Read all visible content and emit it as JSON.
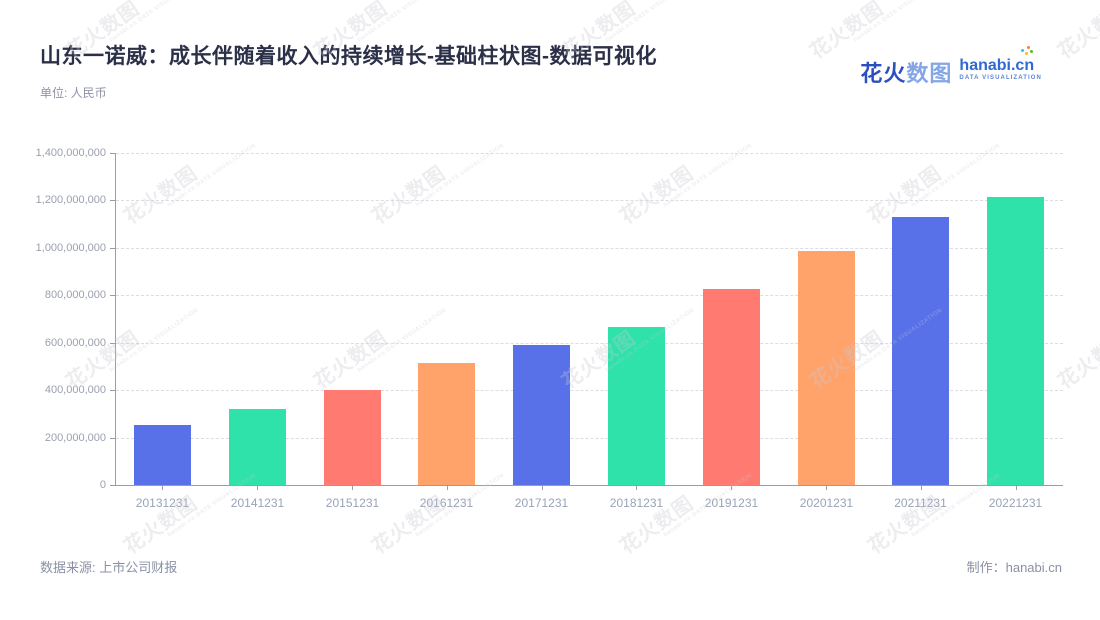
{
  "header": {
    "title": "山东一诺威：成长伴随着收入的持续增长-基础柱状图-数据可视化",
    "subtitle": "单位: 人民币",
    "logo": {
      "brand_cn_1": "花火",
      "brand_cn_2": "数图",
      "brand_en": "hanabi.cn",
      "tagline": "DATA VISUALIZATION"
    }
  },
  "footer": {
    "source": "数据来源: 上市公司财报",
    "credit": "制作：hanabi.cn"
  },
  "watermark": {
    "text": "花火数图",
    "subtext": "hanabi.cn DATA VISUALIZATION"
  },
  "chart_data": {
    "type": "bar",
    "title": "山东一诺威：成长伴随着收入的持续增长-基础柱状图-数据可视化",
    "unit": "人民币",
    "categories": [
      "20131231",
      "20141231",
      "20151231",
      "20161231",
      "20171231",
      "20181231",
      "20191231",
      "20201231",
      "20211231",
      "20221231"
    ],
    "values": [
      255000000,
      320000000,
      400000000,
      515000000,
      590000000,
      665000000,
      825000000,
      985000000,
      1130000000,
      1215000000
    ],
    "ylim": [
      0,
      1400000000
    ],
    "y_tick_interval": 200000000,
    "y_tick_labels": [
      "1,400,000,000",
      "1,200,000,000",
      "1,000,000,000",
      "800,000,000",
      "600,000,000",
      "400,000,000",
      "200,000,000",
      "0"
    ],
    "grid": "dashed-horizontal",
    "legend": "none",
    "bar_palette": [
      "#5871E8",
      "#2FE2AA",
      "#FF7B72",
      "#FFA36B"
    ]
  }
}
